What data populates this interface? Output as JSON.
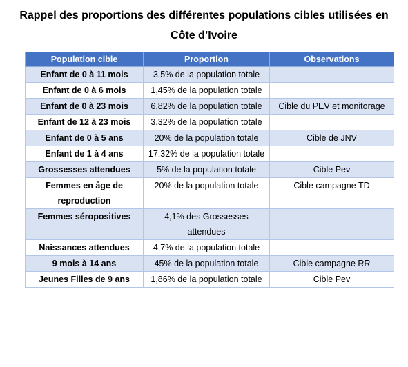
{
  "title": {
    "line1": "Rappel des proportions des différentes populations cibles utilisées en",
    "line2": "Côte d’Ivoire"
  },
  "table": {
    "headers": [
      "Population cible",
      "Proportion",
      "Observations"
    ],
    "rows": [
      {
        "population": "Enfant de 0 à 11 mois",
        "proportion": "3,5% de la population totale",
        "observations": ""
      },
      {
        "population": "Enfant de 0 à 6 mois",
        "proportion": "1,45% de la population totale",
        "observations": ""
      },
      {
        "population": "Enfant de 0 à 23 mois",
        "proportion": "6,82% de la population totale",
        "observations": "Cible du PEV et monitorage"
      },
      {
        "population": "Enfant de 12 à 23 mois",
        "proportion": "3,32% de la population totale",
        "observations": ""
      },
      {
        "population": "Enfant de 0 à 5 ans",
        "proportion": "20% de la population totale",
        "observations": "Cible de JNV"
      },
      {
        "population": "Enfant de 1 à 4 ans",
        "proportion": "17,32% de la population totale",
        "observations": ""
      },
      {
        "population": "Grossesses attendues",
        "proportion": "5% de la population totale",
        "observations": "Cible Pev"
      },
      {
        "population": "Femmes en âge de reproduction",
        "proportion": "20% de la population totale",
        "observations": "Cible campagne TD"
      },
      {
        "population": "Femmes séropositives",
        "proportion": "4,1% des Grossesses attendues",
        "observations": ""
      },
      {
        "population": "Naissances attendues",
        "proportion": "4,7% de la population totale",
        "observations": ""
      },
      {
        "population": "9 mois à 14 ans",
        "proportion": "45% de la population totale",
        "observations": "Cible campagne RR"
      },
      {
        "population": "Jeunes Filles de 9 ans",
        "proportion": "1,86% de la population totale",
        "observations": "Cible Pev"
      }
    ]
  },
  "colors": {
    "header_bg": "#4472c4",
    "row_shade": "#d9e2f3"
  }
}
